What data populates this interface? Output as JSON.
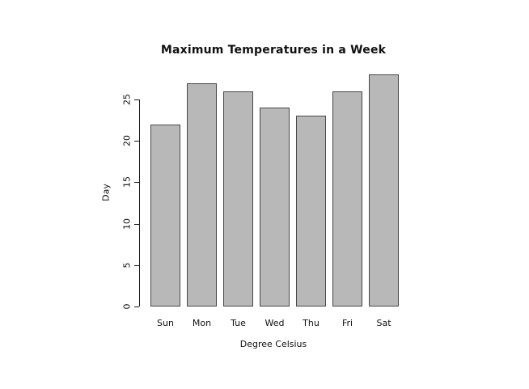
{
  "window": {
    "background": "#ffffff"
  },
  "chart_data": {
    "type": "bar",
    "title": "Maximum Temperatures in a Week",
    "categories": [
      "Sun",
      "Mon",
      "Tue",
      "Wed",
      "Thu",
      "Fri",
      "Sat"
    ],
    "values": [
      22,
      27,
      26,
      24,
      23,
      26,
      28
    ],
    "xlabel": "Degree Celsius",
    "ylabel": "Day",
    "yticks": [
      0,
      5,
      10,
      15,
      20,
      25
    ],
    "ylim": [
      0,
      25
    ],
    "grid": false,
    "legend_position": "none",
    "bar_fill": "#b8b8b8",
    "bar_border": "#484848",
    "axis_color": "#1a1a1a"
  }
}
